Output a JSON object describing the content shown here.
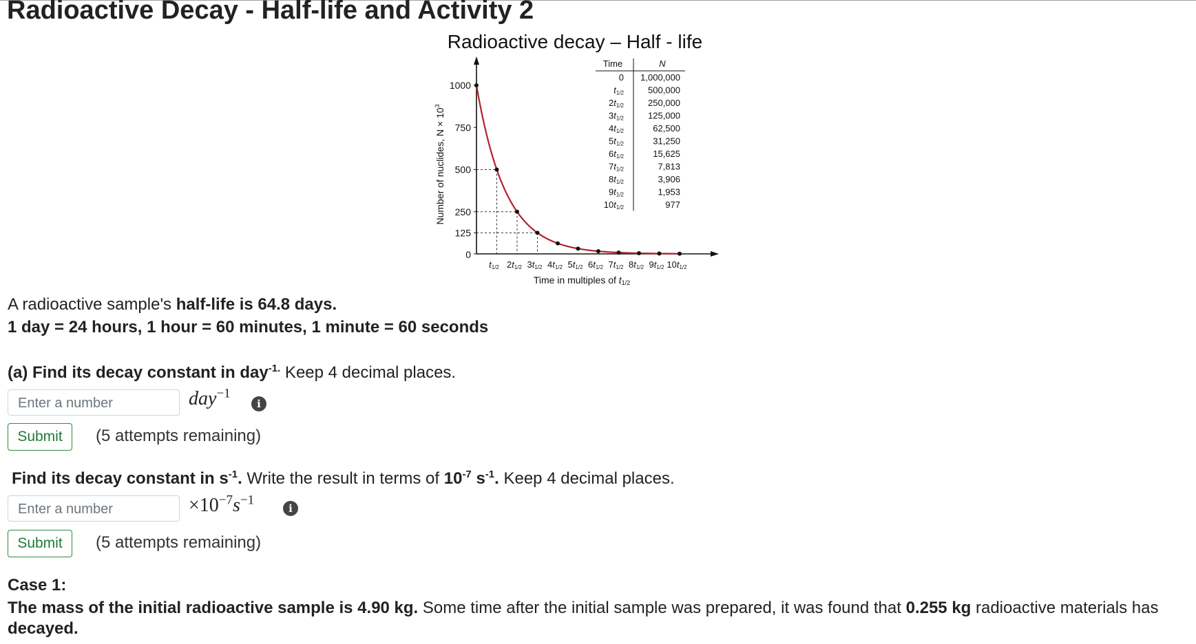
{
  "page": {
    "title": "Radioactive Decay - Half-life and Activity 2"
  },
  "chart_data": {
    "type": "line",
    "title": "Radioactive decay – Half - life",
    "ylabel": "Number of nuclides, N × 10",
    "ylabel_sup": "3",
    "xlabel": "Time in multiples of t",
    "xlabel_sub": "1/2",
    "y_ticks": [
      "0",
      "125",
      "250",
      "500",
      "750",
      "1000"
    ],
    "y_tick_values": [
      0,
      125,
      250,
      500,
      750,
      1000
    ],
    "x_tick_prefixes": [
      "",
      "2",
      "3",
      "4",
      "5",
      "6",
      "7",
      "8",
      "9",
      "10"
    ],
    "x_values": [
      0,
      1,
      2,
      3,
      4,
      5,
      6,
      7,
      8,
      9,
      10
    ],
    "series": [
      {
        "values": [
          1000,
          500,
          250,
          125,
          62.5,
          31.25,
          15.625,
          7.813,
          3.906,
          1.953,
          0.977
        ]
      }
    ],
    "ylim": [
      0,
      1000
    ],
    "xlim": [
      0,
      11
    ],
    "table": {
      "headers": [
        "Time",
        "N"
      ],
      "time_prefixes": [
        "0",
        "",
        "2",
        "3",
        "4",
        "5",
        "6",
        "7",
        "8",
        "9",
        "10"
      ],
      "values": [
        "1,000,000",
        "500,000",
        "250,000",
        "125,000",
        "62,500",
        "31,250",
        "15,625",
        "7,813",
        "3,906",
        "1,953",
        "977"
      ]
    },
    "line_color": "#b3202a"
  },
  "intro": {
    "l1_pre": "A radioactive sample's ",
    "l1_bold": "half-life is 64.8 days.",
    "l2": "1 day = 24 hours, 1 hour = 60 minutes, 1 minute = 60 seconds"
  },
  "part_a": {
    "q_bold": "(a) Find its decay constant in day",
    "q_sup": "-1.",
    "q_rest": " Keep 4 decimal places.",
    "placeholder": "Enter a number",
    "unit_var": "day",
    "unit_sup": "−1",
    "submit": "Submit",
    "attempts": "(5 attempts remaining)"
  },
  "part_b": {
    "q_bold1": "Find its decay constant in s",
    "q_sup1": "-1",
    "q_dot": ".",
    "q_mid": " Write the result in terms of ",
    "q_bold2": "10",
    "q_sup2": "-7",
    "q_bold3": " s",
    "q_sup3": "-1",
    "q_dot2": ".",
    "q_rest": " Keep 4 decimal places.",
    "placeholder": "Enter a number",
    "unit_prefix": "×10",
    "unit_exp": "−7",
    "unit_var": "s",
    "unit_sup": "−1",
    "submit": "Submit",
    "attempts": "(5 attempts remaining)"
  },
  "case1": {
    "heading": "Case 1:",
    "bold1": "The mass of the initial radioactive sample is 4.90 kg.",
    "mid": " Some time after the initial sample was prepared, it was found that ",
    "bold2": "0.255 kg",
    "rest": " radioactive materials has ",
    "bold3": "decayed."
  },
  "icons": {
    "info": "info-circle-icon"
  }
}
